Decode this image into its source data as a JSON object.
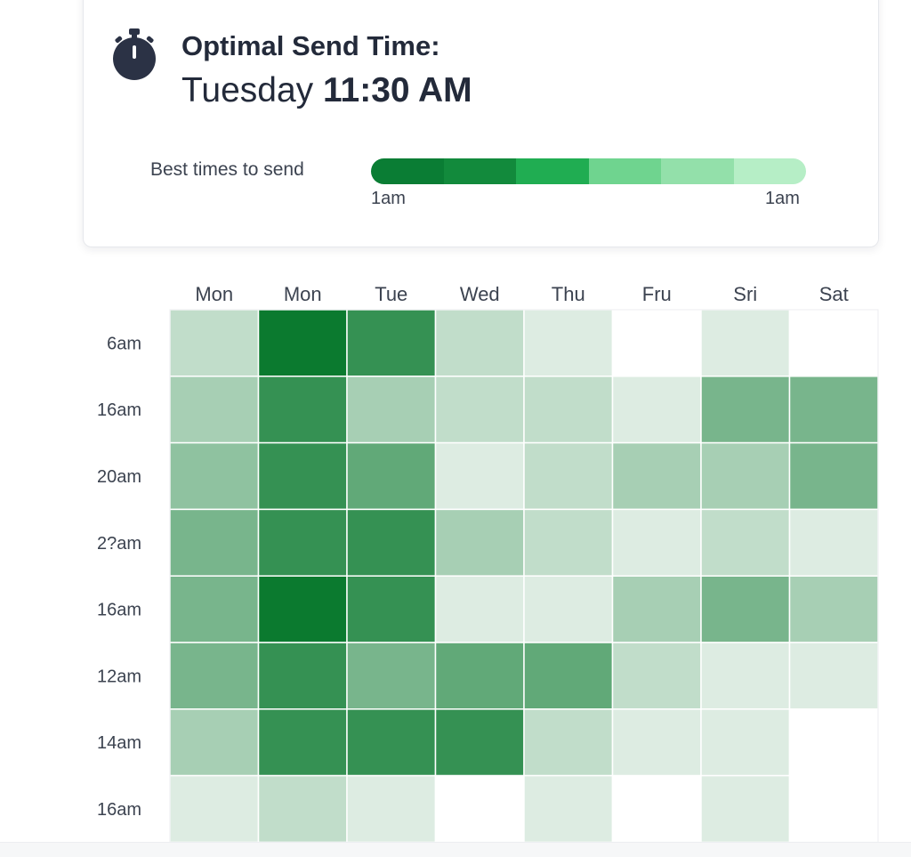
{
  "header": {
    "title": "Optimal Send Time:",
    "optimal_day": "Tuesday",
    "optimal_time": "11:30 AM",
    "icon": "stopwatch-icon",
    "icon_color": "#2b3245"
  },
  "legend": {
    "label": "Best times to send",
    "min_label": "1am",
    "max_label": "1am",
    "colors": [
      "#0a7d34",
      "#128a3c",
      "#20ad52",
      "#6fd48f",
      "#93e0aa",
      "#b6eec6"
    ]
  },
  "chart_data": {
    "type": "heatmap",
    "title": "",
    "columns": [
      "Mon",
      "Mon",
      "Tue",
      "Wed",
      "Thu",
      "Fru",
      "Sri",
      "Sat"
    ],
    "rows": [
      "6am",
      "16am",
      "20am",
      "2?am",
      "16am",
      "12am",
      "14am",
      "16am"
    ],
    "values": [
      [
        2,
        10,
        8,
        2,
        1,
        0,
        1,
        0
      ],
      [
        3,
        8,
        3,
        2,
        2,
        1,
        5,
        5
      ],
      [
        4,
        8,
        6,
        1,
        2,
        3,
        3,
        5
      ],
      [
        5,
        8,
        8,
        3,
        2,
        1,
        2,
        1
      ],
      [
        5,
        10,
        8,
        1,
        1,
        3,
        5,
        3
      ],
      [
        5,
        8,
        5,
        6,
        6,
        2,
        1,
        1
      ],
      [
        3,
        8,
        8,
        8,
        2,
        1,
        1,
        0
      ],
      [
        1,
        2,
        1,
        0,
        1,
        0,
        1,
        0
      ]
    ],
    "scale": [
      0,
      10
    ],
    "color_low": "#ffffff",
    "color_high": "#0b7a2f",
    "grid": true
  }
}
